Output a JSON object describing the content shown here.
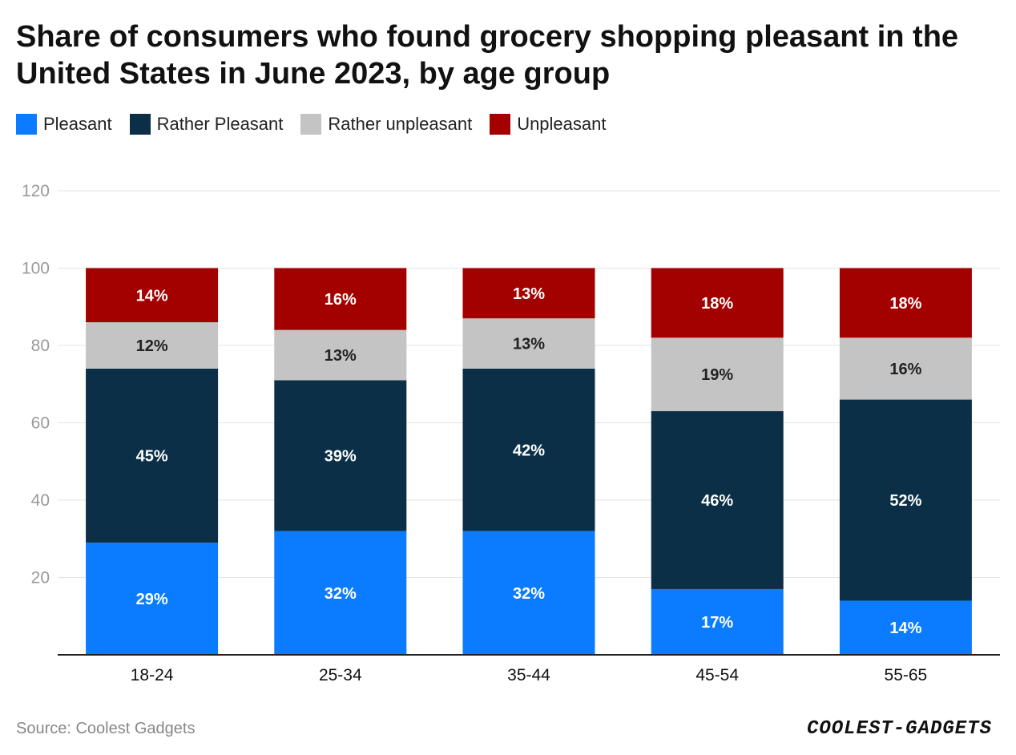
{
  "header": {
    "title": "Share of consumers who found grocery shopping pleasant in the United States in June 2023, by age group"
  },
  "footer": {
    "source": "Source: Coolest Gadgets",
    "logo_text": "COOLEST-GADGETS"
  },
  "chart_data": {
    "type": "bar",
    "stacked": true,
    "title": "Share of consumers who found grocery shopping pleasant in the United States in June 2023, by age group",
    "xlabel": "",
    "ylabel": "",
    "ylim": [
      0,
      120
    ],
    "yticks": [
      20,
      40,
      60,
      80,
      100,
      120
    ],
    "grid": true,
    "legend_position": "top-left",
    "categories": [
      "18-24",
      "25-34",
      "35-44",
      "45-54",
      "55-65"
    ],
    "series": [
      {
        "name": "Pleasant",
        "color": "#0b7cff",
        "label_color": "#ffffff",
        "values": [
          29,
          32,
          32,
          17,
          14
        ],
        "labels": [
          "29%",
          "32%",
          "32%",
          "17%",
          "14%"
        ]
      },
      {
        "name": "Rather Pleasant",
        "color": "#0b2f47",
        "label_color": "#ffffff",
        "values": [
          45,
          39,
          42,
          46,
          52
        ],
        "labels": [
          "45%",
          "39%",
          "42%",
          "46%",
          "52%"
        ]
      },
      {
        "name": "Rather unpleasant",
        "color": "#c4c4c4",
        "label_color": "#222222",
        "values": [
          12,
          13,
          13,
          19,
          16
        ],
        "labels": [
          "12%",
          "13%",
          "13%",
          "19%",
          "16%"
        ]
      },
      {
        "name": "Unpleasant",
        "color": "#a30000",
        "label_color": "#ffffff",
        "values": [
          14,
          16,
          13,
          18,
          18
        ],
        "labels": [
          "14%",
          "16%",
          "13%",
          "18%",
          "18%"
        ]
      }
    ]
  }
}
